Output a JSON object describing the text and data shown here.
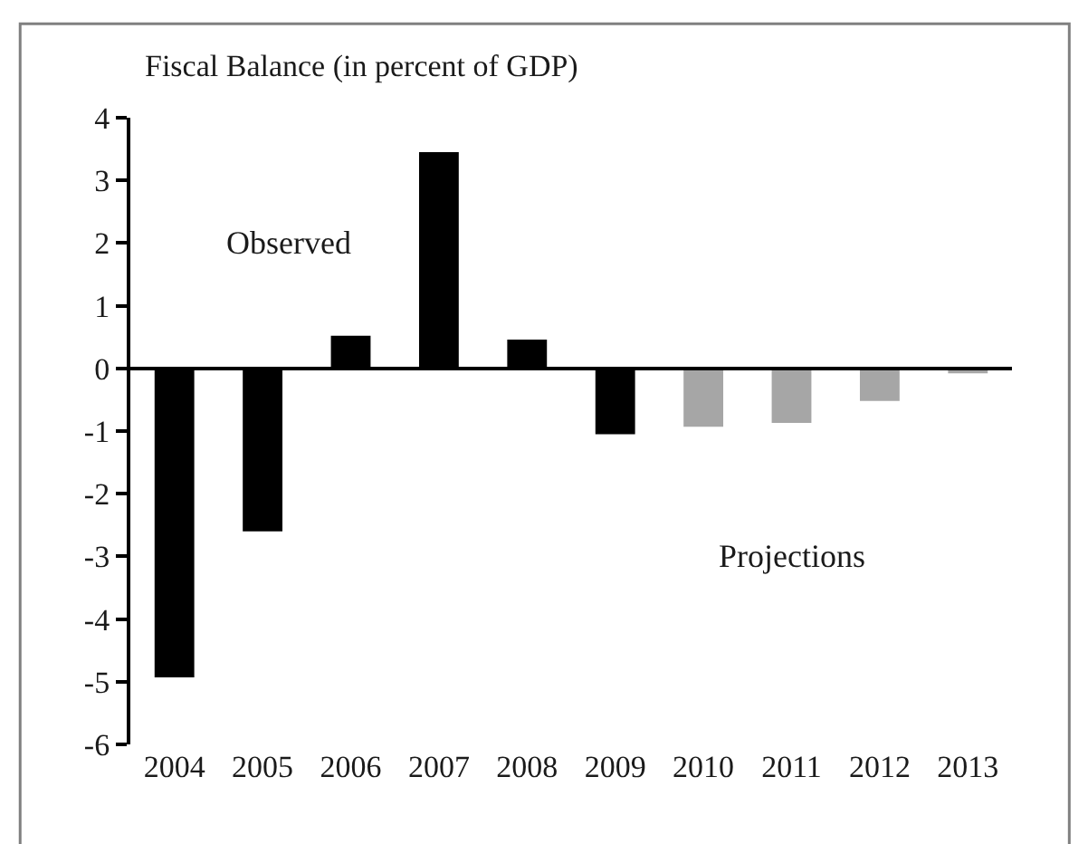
{
  "chart_data": {
    "type": "bar",
    "title": "Fiscal Balance (in percent of GDP)",
    "categories": [
      "2004",
      "2005",
      "2006",
      "2007",
      "2008",
      "2009",
      "2010",
      "2011",
      "2012",
      "2013"
    ],
    "values": [
      -4.93,
      -2.6,
      0.52,
      3.45,
      0.46,
      -1.05,
      -0.93,
      -0.87,
      -0.52,
      -0.08
    ],
    "colors": [
      "#000000",
      "#000000",
      "#000000",
      "#000000",
      "#000000",
      "#000000",
      "#a6a6a6",
      "#a6a6a6",
      "#a6a6a6",
      "#a6a6a6"
    ],
    "ylim": [
      -6,
      4
    ],
    "yticks": [
      -6,
      -5,
      -4,
      -3,
      -2,
      -1,
      0,
      1,
      2,
      3,
      4
    ],
    "annotations": [
      "Observed",
      "Projections"
    ]
  }
}
